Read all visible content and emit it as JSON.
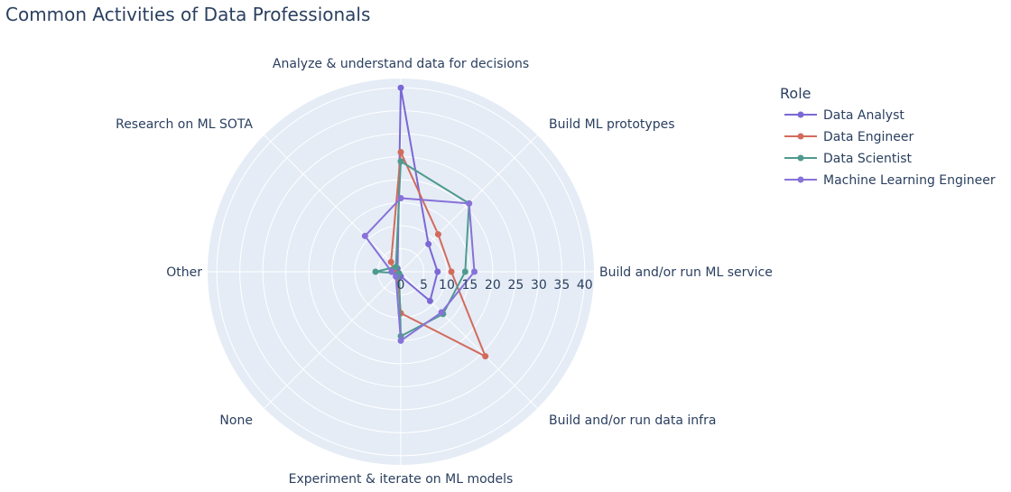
{
  "chart_data": {
    "type": "radar",
    "title": "Common Activities of Data Professionals",
    "categories": [
      "Analyze & understand data for decisions",
      "Build ML prototypes",
      "Build and/or run ML service",
      "Build and/or run data infra",
      "Experiment & iterate on ML models",
      "None",
      "Other",
      "Research on ML SOTA"
    ],
    "radial_ticks": [
      "0",
      "5",
      "10",
      "15",
      "20",
      "25",
      "30",
      "35",
      "40"
    ],
    "radial_range": [
      0,
      42
    ],
    "grid": true,
    "legend": {
      "title": "Role",
      "placement": "top-right"
    },
    "series": [
      {
        "name": "Data Analyst",
        "color": "#7b68d4",
        "values": [
          40,
          8.5,
          8,
          9,
          1,
          1.3,
          2,
          1
        ]
      },
      {
        "name": "Data Engineer",
        "color": "#d26b5c",
        "values": [
          26,
          11.5,
          11,
          26,
          9,
          1,
          1.5,
          3
        ]
      },
      {
        "name": "Data Scientist",
        "color": "#4f9a8f",
        "values": [
          24,
          21,
          14,
          13,
          14,
          0.5,
          5.5,
          1.5
        ]
      },
      {
        "name": "Machine Learning Engineer",
        "color": "#8672d8",
        "values": [
          16,
          21,
          16,
          12.5,
          15,
          1.5,
          2,
          11
        ]
      }
    ]
  }
}
